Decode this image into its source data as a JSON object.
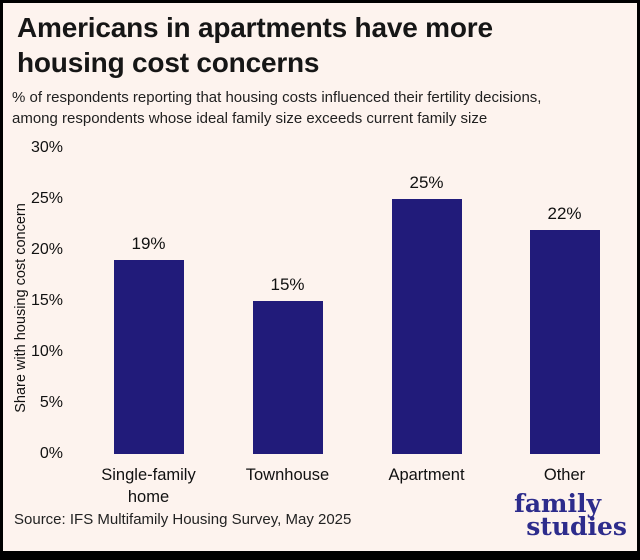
{
  "colors": {
    "background": "#fdf3ee",
    "bar": "#211b7a",
    "frame": "#000000",
    "logo": "#2d2c8c"
  },
  "header": {
    "title_lines": [
      "Americans in apartments have more",
      "housing cost concerns"
    ],
    "subtitle_lines": [
      "% of respondents reporting that housing costs influenced their fertility decisions,",
      "among respondents whose ideal family size exceeds current family size"
    ]
  },
  "chart_data": {
    "type": "bar",
    "title": "Americans in apartments have more housing cost concerns",
    "subtitle": "% of respondents reporting that housing costs influenced their fertility decisions, among respondents whose ideal family size exceeds current family size",
    "categories": [
      "Single-family home",
      "Townhouse",
      "Apartment",
      "Other"
    ],
    "values": [
      19,
      15,
      25,
      22
    ],
    "value_labels": [
      "19%",
      "15%",
      "25%",
      "22%"
    ],
    "xlabel": "",
    "ylabel": "Share with housing cost concern",
    "ylim": [
      0,
      30
    ],
    "yticks": [
      "0%",
      "5%",
      "10%",
      "15%",
      "20%",
      "25%",
      "30%"
    ],
    "grid": false,
    "legend_position": "none",
    "bar_color": "#211b7a"
  },
  "footer": {
    "source": "Source: IFS Multifamily Housing Survey, May 2025",
    "logo_line1": "family",
    "logo_line2": "studies"
  }
}
